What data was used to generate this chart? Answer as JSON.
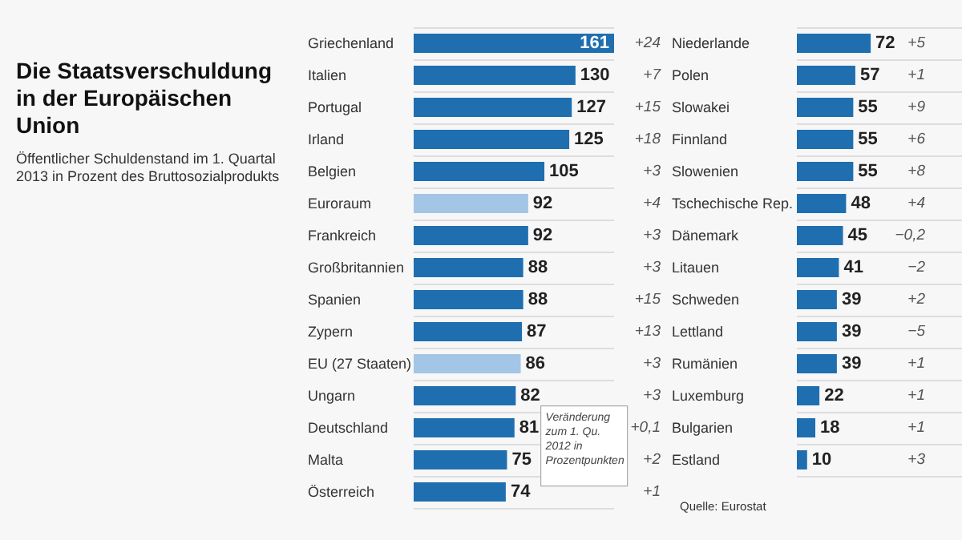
{
  "chart_data": [
    {
      "type": "bar",
      "orientation": "horizontal",
      "title": "Die Staatsverschuldung in der Europäischen Union",
      "subtitle": "Öffentlicher Schuldenstand im 1. Quartal 2013 in Prozent des Bruttosozialprodukts",
      "categories": [
        "Griechenland",
        "Italien",
        "Portugal",
        "Irland",
        "Belgien",
        "Euroraum",
        "Frankreich",
        "Großbritannien",
        "Spanien",
        "Zypern",
        "EU (27 Staaten)",
        "Ungarn",
        "Deutschland",
        "Malta",
        "Österreich"
      ],
      "values": [
        161,
        130,
        127,
        125,
        105,
        92,
        92,
        88,
        88,
        87,
        86,
        82,
        81,
        75,
        74
      ],
      "colors": [
        "#1f6fb0",
        "#1f6fb0",
        "#1f6fb0",
        "#1f6fb0",
        "#1f6fb0",
        "#a3c5e6",
        "#1f6fb0",
        "#1f6fb0",
        "#1f6fb0",
        "#1f6fb0",
        "#a3c5e6",
        "#1f6fb0",
        "#1f6fb0",
        "#1f6fb0",
        "#1f6fb0"
      ],
      "data_labels": true,
      "grid": "y",
      "annotations": [
        "+24",
        "+7",
        "+15",
        "+18",
        "+3",
        "+4",
        "+3",
        "+3",
        "+15",
        "+13",
        "+3",
        "+3",
        "+0,1",
        "+2",
        "+1",
        "Veränderung zum 1. Qu. 2012 in Prozentpunkten"
      ]
    },
    {
      "type": "bar",
      "orientation": "horizontal",
      "categories": [
        "Niederlande",
        "Polen",
        "Slowakei",
        "Finnland",
        "Slowenien",
        "Tschechische Rep.",
        "Dänemark",
        "Litauen",
        "Schweden",
        "Lettland",
        "Rumänien",
        "Luxemburg",
        "Bulgarien",
        "Estland"
      ],
      "values": [
        72,
        57,
        55,
        55,
        55,
        48,
        45,
        41,
        39,
        39,
        39,
        22,
        18,
        10
      ],
      "colors": [
        "#1f6fb0",
        "#1f6fb0",
        "#1f6fb0",
        "#1f6fb0",
        "#1f6fb0",
        "#1f6fb0",
        "#1f6fb0",
        "#1f6fb0",
        "#1f6fb0",
        "#1f6fb0",
        "#1f6fb0",
        "#1f6fb0",
        "#1f6fb0",
        "#1f6fb0"
      ],
      "data_labels": true,
      "grid": "y",
      "annotations": [
        "+5",
        "+1",
        "+9",
        "+6",
        "+8",
        "+4",
        "−0,2",
        "−2",
        "+2",
        "−5",
        "+1",
        "+1",
        "+1",
        "+3",
        "Quelle: Eurostat"
      ]
    }
  ]
}
